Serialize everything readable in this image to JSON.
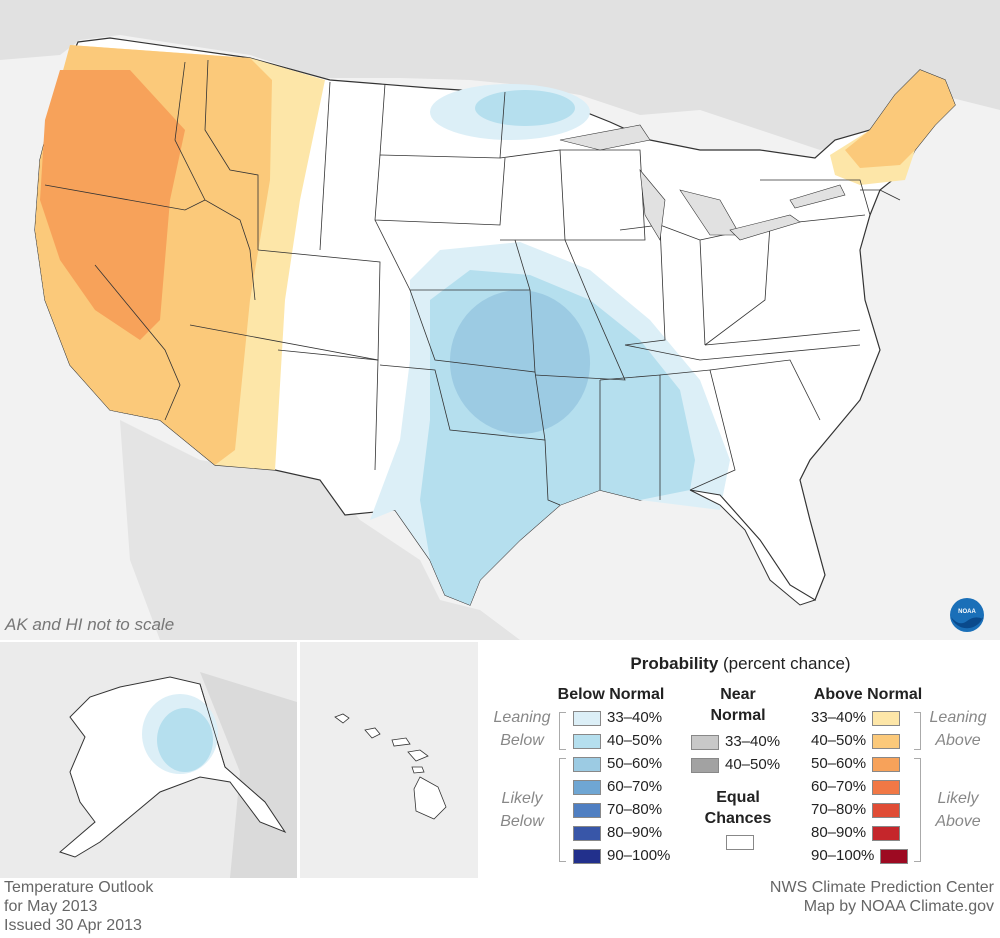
{
  "note": "AK and HI not to scale",
  "legend": {
    "title_bold": "Probability",
    "title_rest": " (percent chance)",
    "below": {
      "heading": "Below Normal",
      "leaning_label": "Leaning Below",
      "likely_label": "Likely Below",
      "items": [
        {
          "label": "33–40%",
          "color": "#dceff7"
        },
        {
          "label": "40–50%",
          "color": "#b5dfee"
        },
        {
          "label": "50–60%",
          "color": "#9ccbe3"
        },
        {
          "label": "60–70%",
          "color": "#6fa6d3"
        },
        {
          "label": "70–80%",
          "color": "#4f7fc2"
        },
        {
          "label": "80–90%",
          "color": "#3856a8"
        },
        {
          "label": "90–100%",
          "color": "#22308c"
        }
      ]
    },
    "near": {
      "heading": "Near Normal",
      "items": [
        {
          "label": "33–40%",
          "color": "#c8c8c8"
        },
        {
          "label": "40–50%",
          "color": "#a2a2a2"
        }
      ],
      "equal_heading": "Equal Chances",
      "equal_color": "#ffffff"
    },
    "above": {
      "heading": "Above Normal",
      "leaning_label": "Leaning Above",
      "likely_label": "Likely Above",
      "items": [
        {
          "label": "33–40%",
          "color": "#fde6a8"
        },
        {
          "label": "40–50%",
          "color": "#fbc97a"
        },
        {
          "label": "50–60%",
          "color": "#f7a25a"
        },
        {
          "label": "60–70%",
          "color": "#f17845"
        },
        {
          "label": "70–80%",
          "color": "#e04c35"
        },
        {
          "label": "80–90%",
          "color": "#c5262b"
        },
        {
          "label": "90–100%",
          "color": "#9d0a22"
        }
      ]
    }
  },
  "footer_left": [
    "Temperature Outlook",
    "for May 2013",
    "Issued 30 Apr 2013"
  ],
  "footer_right": [
    "NWS Climate Prediction Center",
    "Map by NOAA Climate.gov"
  ],
  "logo_text": "NOAA"
}
